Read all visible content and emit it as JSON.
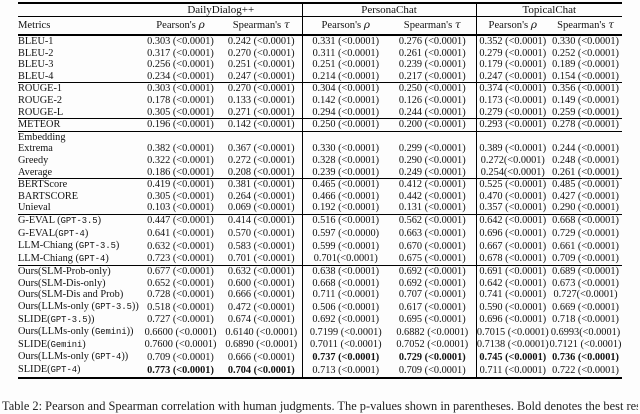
{
  "colors": {
    "text": "#111111",
    "rule": "#000000",
    "background": "#fdfdfd"
  },
  "table": {
    "datasets": [
      "DailyDialog++",
      "PersonaChat",
      "TopicalChat"
    ],
    "metrics_header": "Metrics",
    "subheaders": [
      {
        "label": "Pearson's",
        "symbol": "ρ"
      },
      {
        "label": "Spearman's",
        "symbol": "τ"
      }
    ],
    "groups": [
      {
        "rows": [
          {
            "label": "BLEU-1",
            "cells": [
              "0.303 (<0.0001)",
              "0.242 (<0.0001)",
              "0.331 (<0.0001)",
              "0.276 (<0.0001)",
              "0.352 (<0.0001)",
              "0.330 (<0.0001)"
            ]
          },
          {
            "label": "BLEU-2",
            "cells": [
              "0.317 (<0.0001)",
              "0.270 (<0.0001)",
              "0.311 (<0.0001)",
              "0.261 (<0.0001)",
              "0.279 (<0.0001)",
              "0.252 (<0.0001)"
            ]
          },
          {
            "label": "BLEU-3",
            "cells": [
              "0.256 (<0.0001)",
              "0.251 (<0.0001)",
              "0.251 (<0.0001)",
              "0.239 (<0.0001)",
              "0.179 (<0.0001)",
              "0.189 (<0.0001)"
            ]
          },
          {
            "label": "BLEU-4",
            "cells": [
              "0.234 (<0.0001)",
              "0.247 (<0.0001)",
              "0.214 (<0.0001)",
              "0.217 (<0.0001)",
              "0.247 (<0.0001)",
              "0.154 (<0.0001)"
            ]
          }
        ]
      },
      {
        "rows": [
          {
            "label": "ROUGE-1",
            "cells": [
              "0.303 (<0.0001)",
              "0.270 (<0.0001)",
              "0.304 (<0.0001)",
              "0.250 (<0.0001)",
              "0.374 (<0.0001)",
              "0.356 (<0.0001)"
            ]
          },
          {
            "label": "ROUGE-2",
            "cells": [
              "0.178 (<0.0001)",
              "0.133 (<0.0001)",
              "0.142 (<0.0001)",
              "0.126 (<0.0001)",
              "0.173 (<0.0001)",
              "0.149 (<0.0001)"
            ]
          },
          {
            "label": "ROUGE-L",
            "cells": [
              "0.305 (<0.0001)",
              "0.271 (<0.0001)",
              "0.294 (<0.0001)",
              "0.244 (<0.0001)",
              "0.279 (<0.0001)",
              "0.259 (<0.0001)"
            ]
          }
        ]
      },
      {
        "rows": [
          {
            "label": "METEOR",
            "cells": [
              "0.196 (<0.0001)",
              "0.142 (<0.0001)",
              "0.250 (<0.0001)",
              "0.200 (<0.0001)",
              "0.293 (<0.0001)",
              "0.278 (<0.0001)"
            ]
          }
        ]
      },
      {
        "rows": [
          {
            "label": "Embedding",
            "cells": [
              "",
              "",
              "",
              "",
              "",
              ""
            ]
          },
          {
            "label": "Extrema",
            "cells": [
              "0.382 (<0.0001)",
              "0.367 (<0.0001)",
              "0.330 (<0.0001)",
              "0.299 (<0.0001)",
              "0.389 (<0.0001)",
              "0.244 (<0.0001)"
            ]
          },
          {
            "label": "Greedy",
            "cells": [
              "0.322 (<0.0001)",
              "0.272 (<0.0001)",
              "0.328 (<0.0001)",
              "0.290 (<0.0001)",
              "0.272(<0.0001)",
              "0.248 (<0.0001)"
            ]
          },
          {
            "label": "Average",
            "cells": [
              "0.186 (<0.0001)",
              "0.208 (<0.0001)",
              "0.239 (<0.0001)",
              "0.249 (<0.0001)",
              "0.254(<0.0001)",
              "0.261 (<0.0001)"
            ]
          }
        ]
      },
      {
        "rows": [
          {
            "label": "BERTScore",
            "cells": [
              "0.419 (<0.0001)",
              "0.381 (<0.0001)",
              "0.465 (<0.0001)",
              "0.412 (<0.0001)",
              "0.525 (<0.0001)",
              "0.485 (<0.0001)"
            ]
          },
          {
            "label": "BARTSCORE",
            "cells": [
              "0.305 (<0.0001)",
              "0.264 (<0.0001)",
              "0.466 (<0.0001)",
              "0.442 (<0.0001)",
              "0.470 (<0.0001)",
              "0.427 (<0.0001)"
            ]
          },
          {
            "label": "Unieval",
            "cells": [
              "0.103 (<0.0001)",
              "0.069 (<0.0001)",
              "0.192 (<0.0001)",
              "0.131 (<0.0001)",
              "0.357 (<0.0001)",
              "0.290 (<0.0001)"
            ]
          }
        ]
      },
      {
        "rows": [
          {
            "label": "G-EVAL (`GPT-3.5`)",
            "cells": [
              "0.447 (<0.0001)",
              "0.414 (<0.0001)",
              "0.516 (<0.0001)",
              "0.562 (<0.0001)",
              "0.642 (<0.0001)",
              "0.668 (<0.0001)"
            ]
          },
          {
            "label": "G-EVAL(`GPT-4`)",
            "cells": [
              "0.641 (<0.0001)",
              "0.570 (<0.0001)",
              "0.597 (<0.0000)",
              "0.663 (<0.0001)",
              "0.696 (<0.0001)",
              "0.729 (<0.0001)"
            ]
          },
          {
            "label": "LLM-Chiang (`GPT-3.5`)",
            "cells": [
              "0.632 (<0.0001)",
              "0.583 (<0.0001)",
              "0.599 (<0.0001)",
              "0.670 (<0.0001)",
              "0.667 (<0.0001)",
              "0.661 (<0.0001)"
            ]
          },
          {
            "label": "LLM-Chiang (`GPT-4`)",
            "cells": [
              "0.723 (<0.0001)",
              "0.701 (<0.0001)",
              "0.701(<0.0001)",
              "0.675 (<0.0001)",
              "0.678 (<0.0001)",
              "0.709 (<0.0001)"
            ]
          }
        ]
      },
      {
        "rows": [
          {
            "label": "Ours(SLM-Prob-only)",
            "cells": [
              "0.677 (<0.0001)",
              "0.632 (<0.0001)",
              "0.638 (<0.0001)",
              "0.692 (<0.0001)",
              "0.691 (<0.0001)",
              "0.689 (<0.0001)"
            ]
          },
          {
            "label": "Ours(SLM-Dis-only)",
            "cells": [
              "0.652 (<0.0001)",
              "0.600 (<0.0001)",
              "0.668 (<0.0001)",
              "0.692 (<0.0001)",
              "0.642 (<0.0001)",
              "0.673 (<0.0001)"
            ]
          },
          {
            "label": "Ours(SLM-Dis and Prob)",
            "cells": [
              "0.728 (<0.0001)",
              "0.666 (<0.0001)",
              "0.711 (<0.0001)",
              "0.707 (<0.0001)",
              "0.741 (<0.0001)",
              "0.727(<0.0001)"
            ]
          },
          {
            "label": "Ours(LLMs-only (`GPT-3.5`))",
            "cells": [
              "0.518 (<0.0001)",
              "0.472 (<0.0001)",
              "0.506 (<0.0001)",
              "0.617 (<0.0001)",
              "0.590 (<0.0001)",
              "0.669 (<0.0001)"
            ]
          },
          {
            "label": "SLIDE(`GPT-3.5`))",
            "cells": [
              "0.727 (<0.0001)",
              "0.674 (<0.0001)",
              "0.692 (<0.0001)",
              "0.695 (<0.0001)",
              "0.696 (<0.0001)",
              "0.718 (<0.0001)"
            ]
          },
          {
            "label": "Ours(LLMs-only (`Gemini`))",
            "cells": [
              "0.6600 (<0.0001)",
              "0.6140 (<0.0001)",
              "0.7199 (<0.0001)",
              "0.6882 (<0.0001)",
              "0.7015 (<0.0001)",
              "0.6993(<0.0001)"
            ]
          },
          {
            "label": "SLIDE(`Gemini`)",
            "cells": [
              "0.7600 (<0.0001)",
              "0.6890 (<0.0001)",
              "0.7011 (<0.0001)",
              "0.7052 (<0.0001)",
              "0.7138 (<0.0001)",
              "0.7121 (<0.0001)"
            ]
          },
          {
            "label": "Ours(LLMs-only (`GPT-4`))",
            "cells": [
              "0.709 (<0.0001)",
              "0.666 (<0.0001)",
              "0.737 (<0.0001)",
              "0.729 (<0.0001)",
              "0.745 (<0.0001)",
              "0.736 (<0.0001)"
            ],
            "bold": [
              0,
              0,
              1,
              1,
              1,
              1
            ]
          },
          {
            "label": "SLIDE(`GPT-4`)",
            "cells": [
              "0.773 (<0.0001)",
              "0.704 (<0.0001)",
              "0.713 (<0.0001)",
              "0.709 (<0.0001)",
              "0.711 (<0.0001)",
              "0.722 (<0.0001)"
            ],
            "bold": [
              1,
              1,
              0,
              0,
              0,
              0
            ]
          }
        ]
      }
    ]
  },
  "caption": "Table 2: Pearson and Spearman correlation with human judgments. The p-values shown in parentheses. Bold denotes the best result."
}
